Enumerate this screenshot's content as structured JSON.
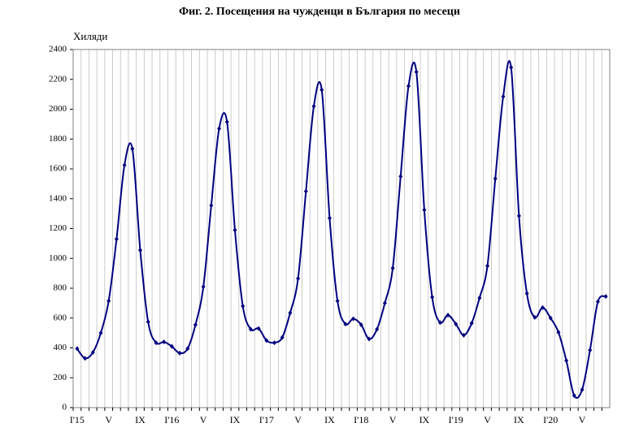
{
  "chart_data": {
    "type": "line",
    "title": "Фиг. 2. Посещения на чужденци в България по месеци",
    "y_label": "Хиляди",
    "categories": [
      "I'15",
      null,
      null,
      null,
      "V",
      null,
      null,
      null,
      "IX",
      null,
      null,
      null,
      "I'16",
      null,
      null,
      null,
      "V",
      null,
      null,
      null,
      "IX",
      null,
      null,
      null,
      "I'17",
      null,
      null,
      null,
      "V",
      null,
      null,
      null,
      "IX",
      null,
      null,
      null,
      "I'18",
      null,
      null,
      null,
      "V",
      null,
      null,
      null,
      "IX",
      null,
      null,
      null,
      "I'19",
      null,
      null,
      null,
      "V",
      null,
      null,
      null,
      "IX",
      null,
      null,
      null,
      "I'20",
      null,
      null,
      null,
      "V",
      null,
      null,
      null
    ],
    "values": [
      395,
      330,
      370,
      500,
      715,
      1130,
      1625,
      1735,
      1055,
      575,
      435,
      440,
      410,
      365,
      395,
      555,
      810,
      1355,
      1870,
      1915,
      1190,
      680,
      525,
      530,
      450,
      435,
      470,
      635,
      865,
      1450,
      2020,
      2130,
      1270,
      715,
      560,
      595,
      555,
      460,
      525,
      700,
      935,
      1550,
      2155,
      2250,
      1325,
      740,
      570,
      620,
      560,
      485,
      565,
      735,
      950,
      1535,
      2085,
      2280,
      1285,
      765,
      605,
      670,
      600,
      505,
      315,
      80,
      120,
      385,
      710,
      745
    ],
    "color": "#000080",
    "ylim": [
      0,
      2400
    ],
    "yticks": [
      0,
      200,
      400,
      600,
      800,
      1000,
      1200,
      1400,
      1600,
      1800,
      2000,
      2200,
      2400
    ],
    "grid": true
  }
}
